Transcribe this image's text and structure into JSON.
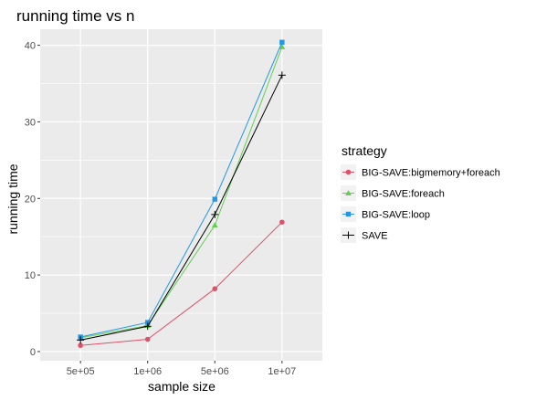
{
  "chart_data": {
    "type": "line",
    "title": "running time vs n",
    "xlabel": "sample size",
    "ylabel": "running time",
    "categories": [
      "5e+05",
      "1e+06",
      "5e+06",
      "1e+07"
    ],
    "x_scale": "discrete",
    "ylim": [
      -1.2,
      42.1
    ],
    "yticks": [
      0,
      10,
      20,
      30,
      40
    ],
    "grid": true,
    "panel_background": "#ebebeb",
    "legend": {
      "title": "strategy",
      "position": "right"
    },
    "series": [
      {
        "name": "BIG-SAVE:bigmemory+foreach",
        "values": [
          0.8,
          1.6,
          8.2,
          16.9
        ],
        "color": "#e0506a",
        "marker": "circle"
      },
      {
        "name": "BIG-SAVE:foreach",
        "values": [
          1.8,
          3.4,
          16.5,
          39.8
        ],
        "color": "#61d04f",
        "marker": "triangle"
      },
      {
        "name": "BIG-SAVE:loop",
        "values": [
          1.9,
          3.8,
          19.9,
          40.4
        ],
        "color": "#2297e6",
        "marker": "square"
      },
      {
        "name": "SAVE",
        "values": [
          1.5,
          3.3,
          17.9,
          36.1
        ],
        "color": "#000000",
        "marker": "plus"
      }
    ]
  }
}
